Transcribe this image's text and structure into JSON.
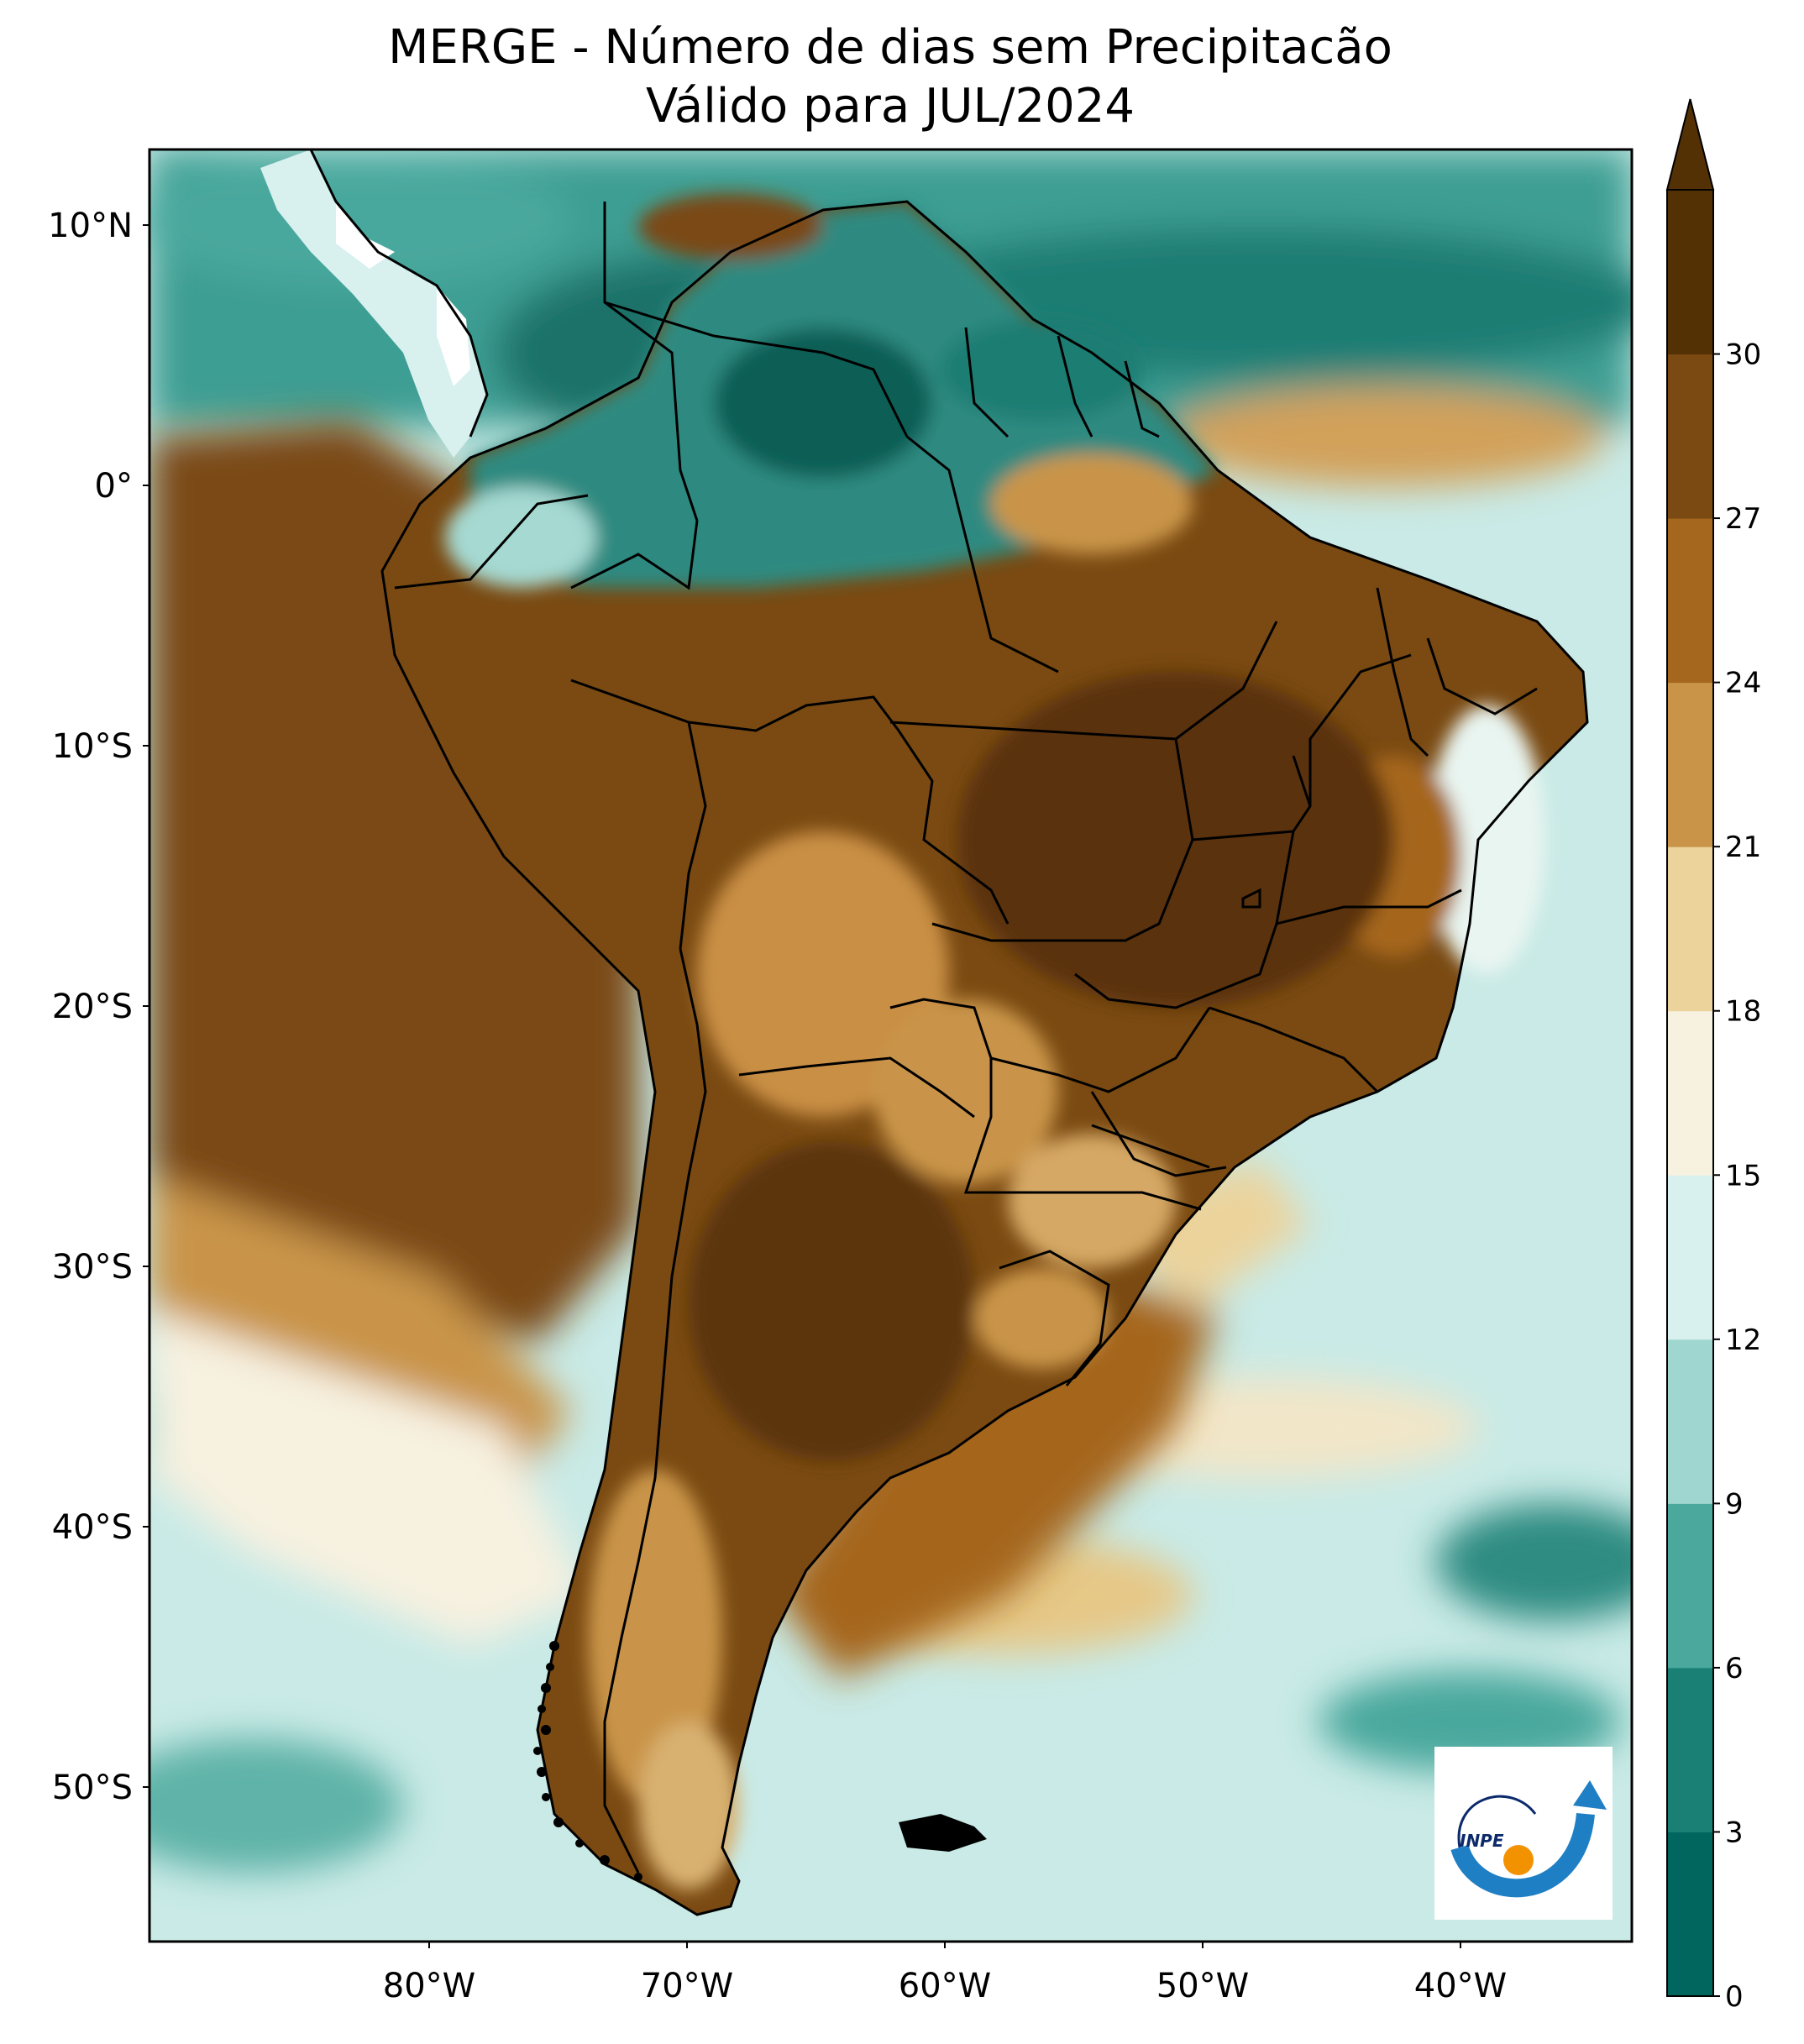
{
  "title": {
    "line1": "MERGE - Número de dias sem Precipitacão",
    "line2": "Válido para JUL/2024"
  },
  "map": {
    "lat_ticks": [
      "10°N",
      "0°",
      "10°S",
      "20°S",
      "30°S",
      "40°S",
      "50°S"
    ],
    "lon_ticks": [
      "80°W",
      "70°W",
      "60°W",
      "50°W",
      "40°W"
    ]
  },
  "colorbar": {
    "levels": [
      "0",
      "3",
      "6",
      "9",
      "12",
      "15",
      "18",
      "21",
      "24",
      "27",
      "30"
    ],
    "colors": [
      "#01665e",
      "#1a7f75",
      "#4aa89d",
      "#9fd6cf",
      "#d8f0ee",
      "#f7f1e0",
      "#ecd39b",
      "#c99448",
      "#a5661e",
      "#7a4a12",
      "#543005"
    ],
    "extend": "max"
  },
  "logo": {
    "text": "INPE"
  }
}
